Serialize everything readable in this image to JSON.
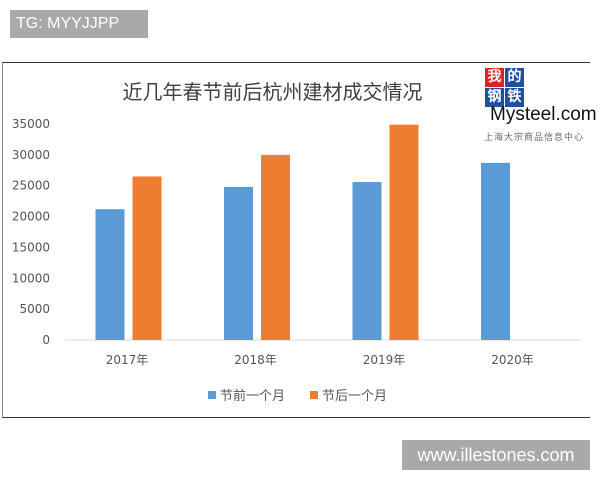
{
  "watermarks": {
    "top_left": "TG: MYYJJPP",
    "bottom_right": "www.illestones.com"
  },
  "logo": {
    "chars": [
      "我",
      "的",
      "钢",
      "铁"
    ],
    "text": "Mysteel.com",
    "sub": "上海大宗商品信息中心"
  },
  "chart_data": {
    "type": "bar",
    "title": "近几年春节前后杭州建材成交情况",
    "categories": [
      "2017年",
      "2018年",
      "2019年",
      "2020年"
    ],
    "series": [
      {
        "name": "节前一个月",
        "color": "#5b9bd5",
        "values": [
          21200,
          24800,
          25600,
          28700
        ]
      },
      {
        "name": "节后一个月",
        "color": "#ed7d31",
        "values": [
          26500,
          30000,
          34900,
          null
        ]
      }
    ],
    "ylim": [
      0,
      35000
    ],
    "yticks": [
      0,
      5000,
      10000,
      15000,
      20000,
      25000,
      30000,
      35000
    ],
    "grid": false,
    "legend": "bottom",
    "xlabel": "",
    "ylabel": ""
  }
}
